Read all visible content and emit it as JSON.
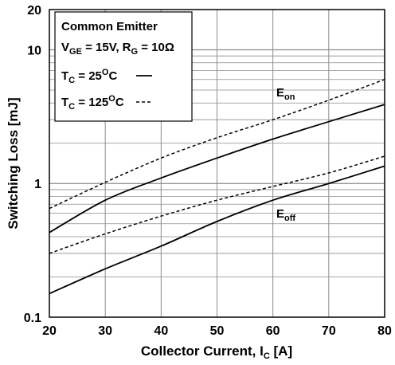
{
  "chart_data": {
    "type": "line",
    "xlabel": "Collector Current, I",
    "xlabel_sub": "C",
    "xlabel_unit": " [A]",
    "ylabel": "Switching Loss [mJ]",
    "xlim": [
      20,
      80
    ],
    "ylim": [
      0.1,
      20
    ],
    "y_scale": "log",
    "grid": true,
    "x_ticks": [
      20,
      30,
      40,
      50,
      60,
      70,
      80
    ],
    "y_ticks": [
      {
        "value": 0.1,
        "label": "0.1"
      },
      {
        "value": 1,
        "label": "1"
      },
      {
        "value": 10,
        "label": "10"
      },
      {
        "value": 20,
        "label": "20"
      }
    ],
    "legend": {
      "placement": "top-left",
      "title": "Common Emitter",
      "cond_v_main": "V",
      "cond_v_sub": "GE",
      "cond_v_value": " = 15V, R",
      "cond_r_sub": "G",
      "cond_r_value": " = 10Ω",
      "entry1_main": "T",
      "entry1_sub": "C",
      "entry1_eq": " = 25",
      "entry1_sup": "O",
      "entry1_unit": "C",
      "entry2_main": "T",
      "entry2_sub": "C",
      "entry2_eq": " = 125",
      "entry2_sup": "O",
      "entry2_unit": "C"
    },
    "curve_labels": {
      "eon_main": "E",
      "eon_sub": "on",
      "eoff_main": "E",
      "eoff_sub": "off"
    },
    "x": [
      20,
      30,
      40,
      50,
      60,
      70,
      80
    ],
    "series": [
      {
        "key": "eon_125",
        "style": "dashed",
        "values": [
          0.65,
          1.02,
          1.55,
          2.2,
          3.0,
          4.2,
          6.0
        ]
      },
      {
        "key": "eon_25",
        "style": "solid",
        "values": [
          0.43,
          0.75,
          1.1,
          1.55,
          2.15,
          2.9,
          3.9
        ]
      },
      {
        "key": "eoff_125",
        "style": "dashed",
        "values": [
          0.3,
          0.42,
          0.57,
          0.75,
          0.95,
          1.2,
          1.6
        ]
      },
      {
        "key": "eoff_25",
        "style": "solid",
        "values": [
          0.15,
          0.23,
          0.34,
          0.52,
          0.75,
          1.0,
          1.35
        ]
      }
    ],
    "colors": {
      "line": "#000000",
      "grid": "#8c8c8c",
      "background": "#ffffff"
    }
  }
}
